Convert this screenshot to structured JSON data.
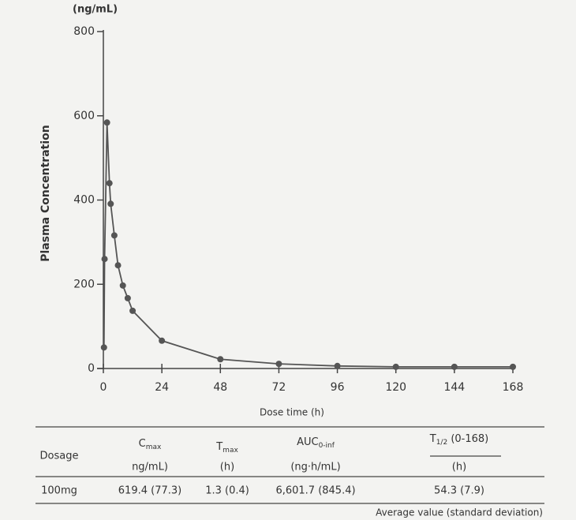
{
  "chart_data": {
    "type": "line",
    "y_unit": "(ng/mL)",
    "ylabel": "Plasma Concentration",
    "xlabel": "Dose time (h)",
    "x": [
      0.25,
      0.5,
      1.5,
      2.5,
      3,
      4.5,
      6,
      8,
      10,
      12,
      24,
      48,
      72,
      96,
      120,
      144,
      168
    ],
    "series": [
      {
        "color": "#555555",
        "values": [
          50,
          260,
          584,
          440,
          391,
          316,
          245,
          197,
          167,
          137,
          66,
          22,
          11,
          6,
          4,
          4,
          4
        ]
      }
    ],
    "xlim": [
      0,
      168
    ],
    "xticks": [
      0,
      24,
      48,
      72,
      96,
      120,
      144,
      168
    ],
    "ylim": [
      0,
      800
    ],
    "yticks": [
      0,
      200,
      400,
      600,
      800
    ]
  },
  "table": {
    "headers": [
      {
        "main": "Dosage"
      },
      {
        "main": "C",
        "sub": "max",
        "unit": "ng/mL)"
      },
      {
        "main": "T",
        "sub": "max",
        "unit": "(h)"
      },
      {
        "main": "AUC",
        "sub": "0-inf",
        "unit": "(ng·h/mL)"
      },
      {
        "main": "T",
        "sub": "1/2",
        "extra": " (0-168)",
        "unit": "(h)"
      }
    ],
    "rows": [
      [
        "100mg",
        "619.4 (77.3)",
        "1.3 (0.4)",
        "6,601.7 (845.4)",
        "54.3 (7.9)"
      ]
    ],
    "note": "Average value (standard deviation)"
  }
}
